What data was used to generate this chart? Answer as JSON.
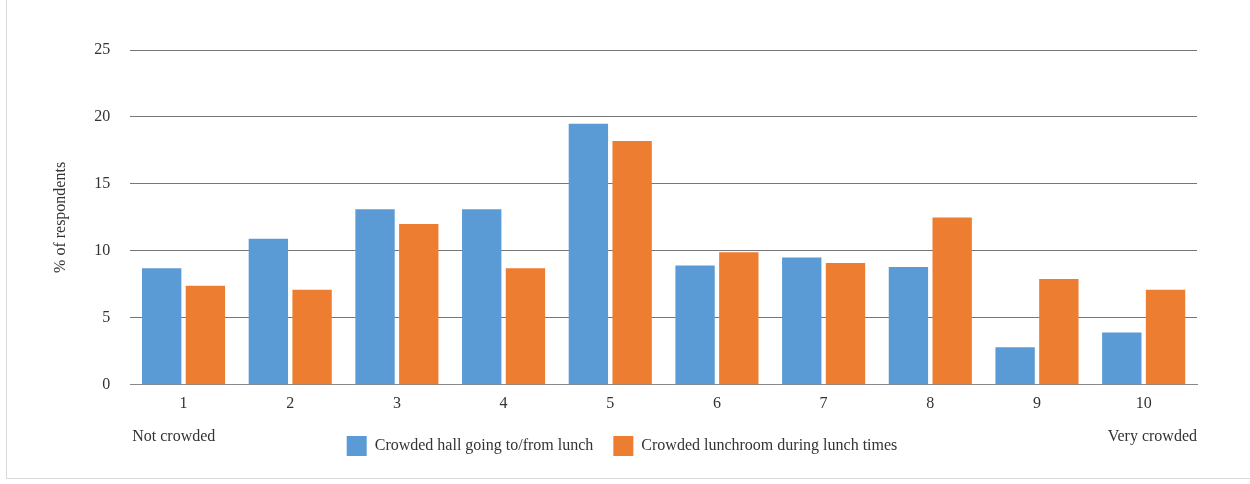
{
  "chart_data": {
    "type": "bar",
    "ylabel": "% of respondents",
    "categories": [
      "1",
      "2",
      "3",
      "4",
      "5",
      "6",
      "7",
      "8",
      "9",
      "10"
    ],
    "series": [
      {
        "name": "Crowded hall going to/from lunch",
        "color": "#5b9bd5",
        "values": [
          8.7,
          10.9,
          13.1,
          13.1,
          19.5,
          8.9,
          9.5,
          8.8,
          2.8,
          3.9
        ]
      },
      {
        "name": "Crowded lunchroom during lunch times",
        "color": "#ed7d31",
        "values": [
          7.4,
          7.1,
          12.0,
          8.7,
          18.2,
          9.9,
          9.1,
          12.5,
          7.9,
          7.1
        ]
      }
    ],
    "ylim": [
      0,
      25
    ],
    "yticks": [
      0,
      5,
      10,
      15,
      20,
      25
    ],
    "grid": "y",
    "legend": "bottom",
    "annotations": [
      "Not crowded",
      "Very crowded"
    ]
  }
}
